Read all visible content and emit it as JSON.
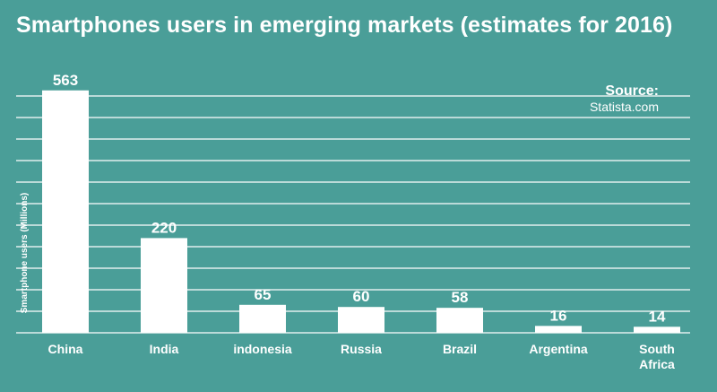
{
  "chart_data": {
    "type": "bar",
    "title": "Smartphones users in emerging markets (estimates for 2016)",
    "xlabel": "",
    "ylabel": "Smartphone users (Millions)",
    "categories": [
      "China",
      "India",
      "indonesia",
      "Russia",
      "Brazil",
      "Argentina",
      "South Africa"
    ],
    "values": [
      563,
      220,
      65,
      60,
      58,
      16,
      14
    ],
    "ylim": [
      0,
      600
    ],
    "grid": true,
    "source_label": "Source:",
    "source_text": "Statista.com"
  }
}
